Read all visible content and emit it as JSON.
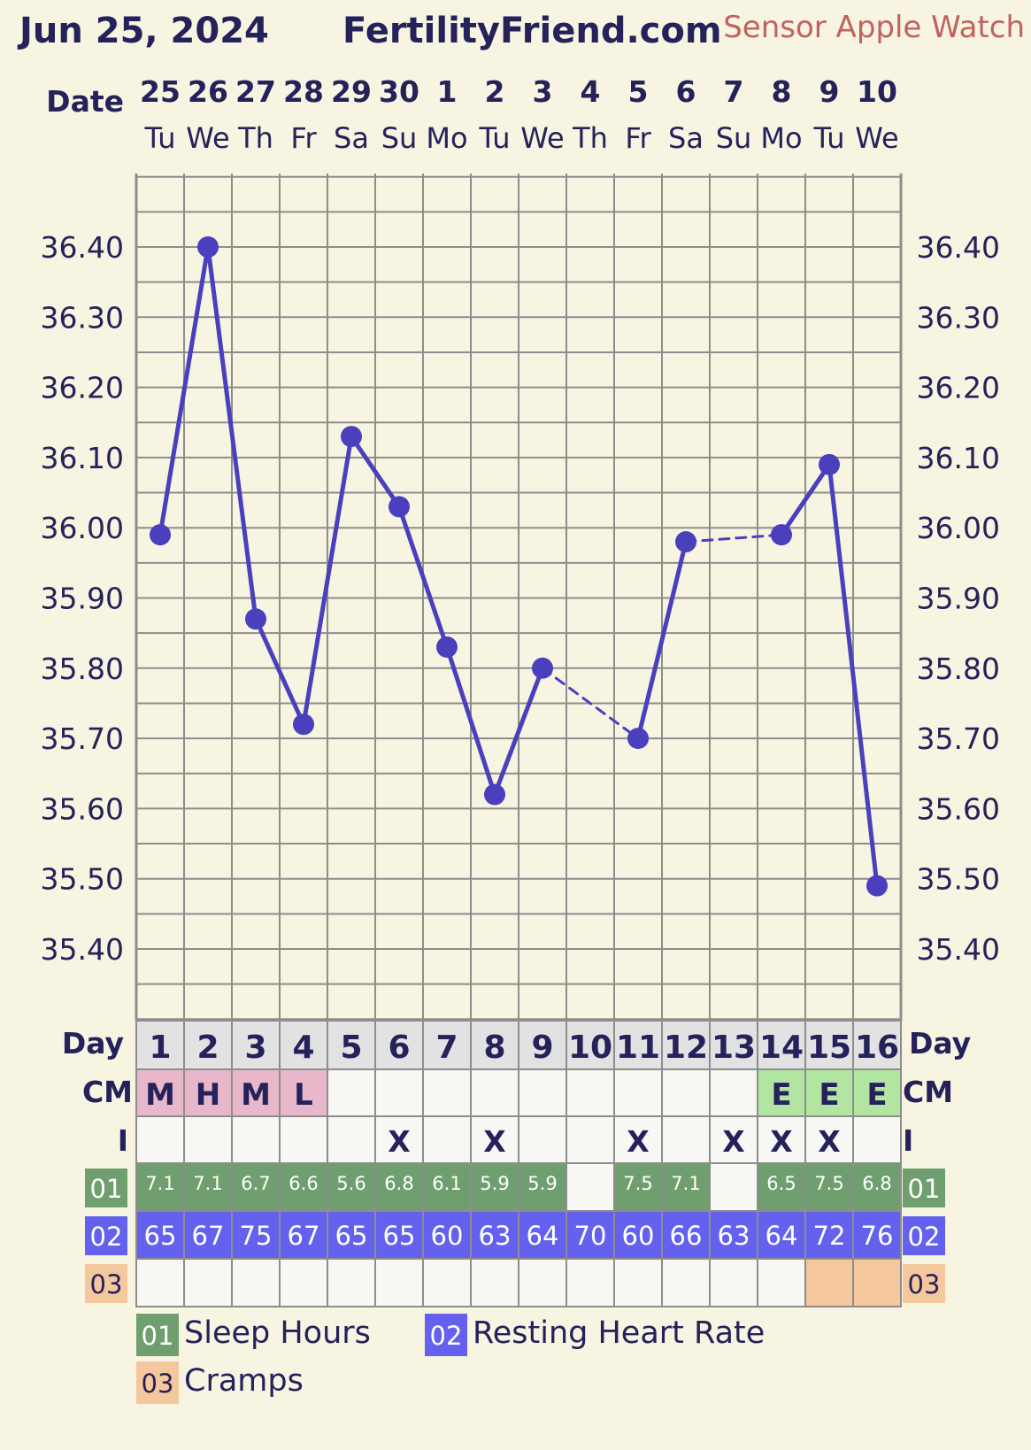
{
  "header": {
    "start_date": "Jun 25, 2024",
    "site": "FertilityFriend.com",
    "sensor": "Sensor Apple Watch"
  },
  "labels": {
    "date": "Date",
    "day": "Day",
    "cm": "CM",
    "intercourse": "I"
  },
  "colors": {
    "line": "#4a3fbd",
    "grid": "#8d8d8d",
    "text": "#25215a",
    "sensor_text": "#c0625d",
    "background": "#f7f4e1",
    "day_cell": "#e2e2e2",
    "empty_cell": "#f7f7f4",
    "cm_menses": "#e8b8ca",
    "cm_egg_white": "#b2e5a2",
    "sleep": "#6f9f6f",
    "heart_rate": "#6461ee",
    "cramps": "#f4c89c"
  },
  "chart_data": {
    "type": "line",
    "dates": [
      "25",
      "26",
      "27",
      "28",
      "29",
      "30",
      "1",
      "2",
      "3",
      "4",
      "5",
      "6",
      "7",
      "8",
      "9",
      "10"
    ],
    "weekdays": [
      "Tu",
      "We",
      "Th",
      "Fr",
      "Sa",
      "Su",
      "Mo",
      "Tu",
      "We",
      "Th",
      "Fr",
      "Sa",
      "Su",
      "Mo",
      "Tu",
      "We"
    ],
    "cycle_days": [
      "1",
      "2",
      "3",
      "4",
      "5",
      "6",
      "7",
      "8",
      "9",
      "10",
      "11",
      "12",
      "13",
      "14",
      "15",
      "16"
    ],
    "temperature": [
      35.99,
      36.4,
      35.87,
      35.72,
      36.13,
      36.03,
      35.83,
      35.62,
      35.8,
      null,
      35.7,
      35.98,
      null,
      35.99,
      36.09,
      35.49
    ],
    "y_ticks": [
      "36.40",
      "36.30",
      "36.20",
      "36.10",
      "36.00",
      "35.90",
      "35.80",
      "35.70",
      "35.60",
      "35.50",
      "35.40"
    ],
    "ylim": [
      35.31,
      36.51
    ],
    "grid": true,
    "cm": [
      "M",
      "H",
      "M",
      "L",
      "",
      "",
      "",
      "",
      "",
      "",
      "",
      "",
      "",
      "E",
      "E",
      "E"
    ],
    "intercourse": [
      "",
      "",
      "",
      "",
      "",
      "X",
      "",
      "X",
      "",
      "",
      "X",
      "",
      "X",
      "X",
      "X",
      ""
    ],
    "sleep_hours": [
      "7.1",
      "7.1",
      "6.7",
      "6.6",
      "5.6",
      "6.8",
      "6.1",
      "5.9",
      "5.9",
      "",
      "7.5",
      "7.1",
      "",
      "6.5",
      "7.5",
      "6.8"
    ],
    "resting_heart_rate": [
      "65",
      "67",
      "75",
      "67",
      "65",
      "65",
      "60",
      "63",
      "64",
      "70",
      "60",
      "66",
      "63",
      "64",
      "72",
      "76"
    ],
    "cramps": [
      false,
      false,
      false,
      false,
      false,
      false,
      false,
      false,
      false,
      false,
      false,
      false,
      false,
      false,
      true,
      true
    ],
    "row_codes": [
      "01",
      "02",
      "03"
    ],
    "legend": [
      {
        "code": "01",
        "label": "Sleep Hours"
      },
      {
        "code": "02",
        "label": "Resting Heart Rate"
      },
      {
        "code": "03",
        "label": "Cramps"
      }
    ]
  }
}
